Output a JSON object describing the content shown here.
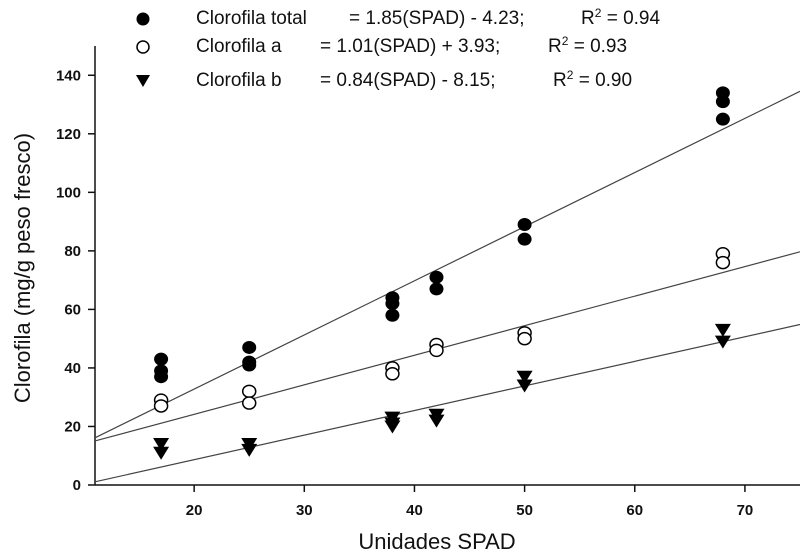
{
  "chart_data": {
    "type": "scatter",
    "xlabel": "Unidades SPAD",
    "ylabel": "Clorofila (mg/g peso fresco)",
    "xlim": [
      11,
      75
    ],
    "ylim": [
      0,
      150
    ],
    "xticks": [
      20,
      30,
      40,
      50,
      60,
      70
    ],
    "yticks": [
      0,
      20,
      40,
      60,
      80,
      100,
      120,
      140
    ],
    "grid": false,
    "legend_position": "top",
    "series": [
      {
        "name": "Clorofila total",
        "equation": "= 1.85(SPAD) - 4.23;",
        "r2_label": "R",
        "r2_value": "= 0.94",
        "marker": "filled-circle",
        "color": "#000000",
        "slope": 1.85,
        "intercept": -4.23,
        "points": [
          [
            17,
            43
          ],
          [
            17,
            39
          ],
          [
            17,
            37
          ],
          [
            25,
            47
          ],
          [
            25,
            42
          ],
          [
            25,
            41
          ],
          [
            38,
            64
          ],
          [
            38,
            62
          ],
          [
            38,
            58
          ],
          [
            42,
            71
          ],
          [
            42,
            67
          ],
          [
            50,
            89
          ],
          [
            50,
            84
          ],
          [
            68,
            134
          ],
          [
            68,
            131
          ],
          [
            68,
            125
          ]
        ]
      },
      {
        "name": "Clorofila a",
        "equation": "= 1.01(SPAD) + 3.93;",
        "r2_label": "R",
        "r2_value": "= 0.93",
        "marker": "open-circle",
        "color": "#000000",
        "slope": 1.01,
        "intercept": 3.93,
        "points": [
          [
            17,
            29
          ],
          [
            17,
            27
          ],
          [
            25,
            32
          ],
          [
            25,
            28
          ],
          [
            38,
            40
          ],
          [
            38,
            38
          ],
          [
            42,
            48
          ],
          [
            42,
            46
          ],
          [
            50,
            52
          ],
          [
            50,
            50
          ],
          [
            68,
            79
          ],
          [
            68,
            76
          ]
        ]
      },
      {
        "name": "Clorofila b",
        "equation": "= 0.84(SPAD) - 8.15;",
        "r2_label": "R",
        "r2_value": "= 0.90",
        "marker": "filled-triangle-down",
        "color": "#000000",
        "slope": 0.84,
        "intercept": -8.15,
        "points": [
          [
            17,
            14
          ],
          [
            17,
            11
          ],
          [
            25,
            14
          ],
          [
            25,
            12
          ],
          [
            38,
            23
          ],
          [
            38,
            21
          ],
          [
            38,
            20
          ],
          [
            42,
            24
          ],
          [
            42,
            22
          ],
          [
            50,
            37
          ],
          [
            50,
            34
          ],
          [
            68,
            53
          ],
          [
            68,
            49
          ]
        ]
      }
    ]
  }
}
